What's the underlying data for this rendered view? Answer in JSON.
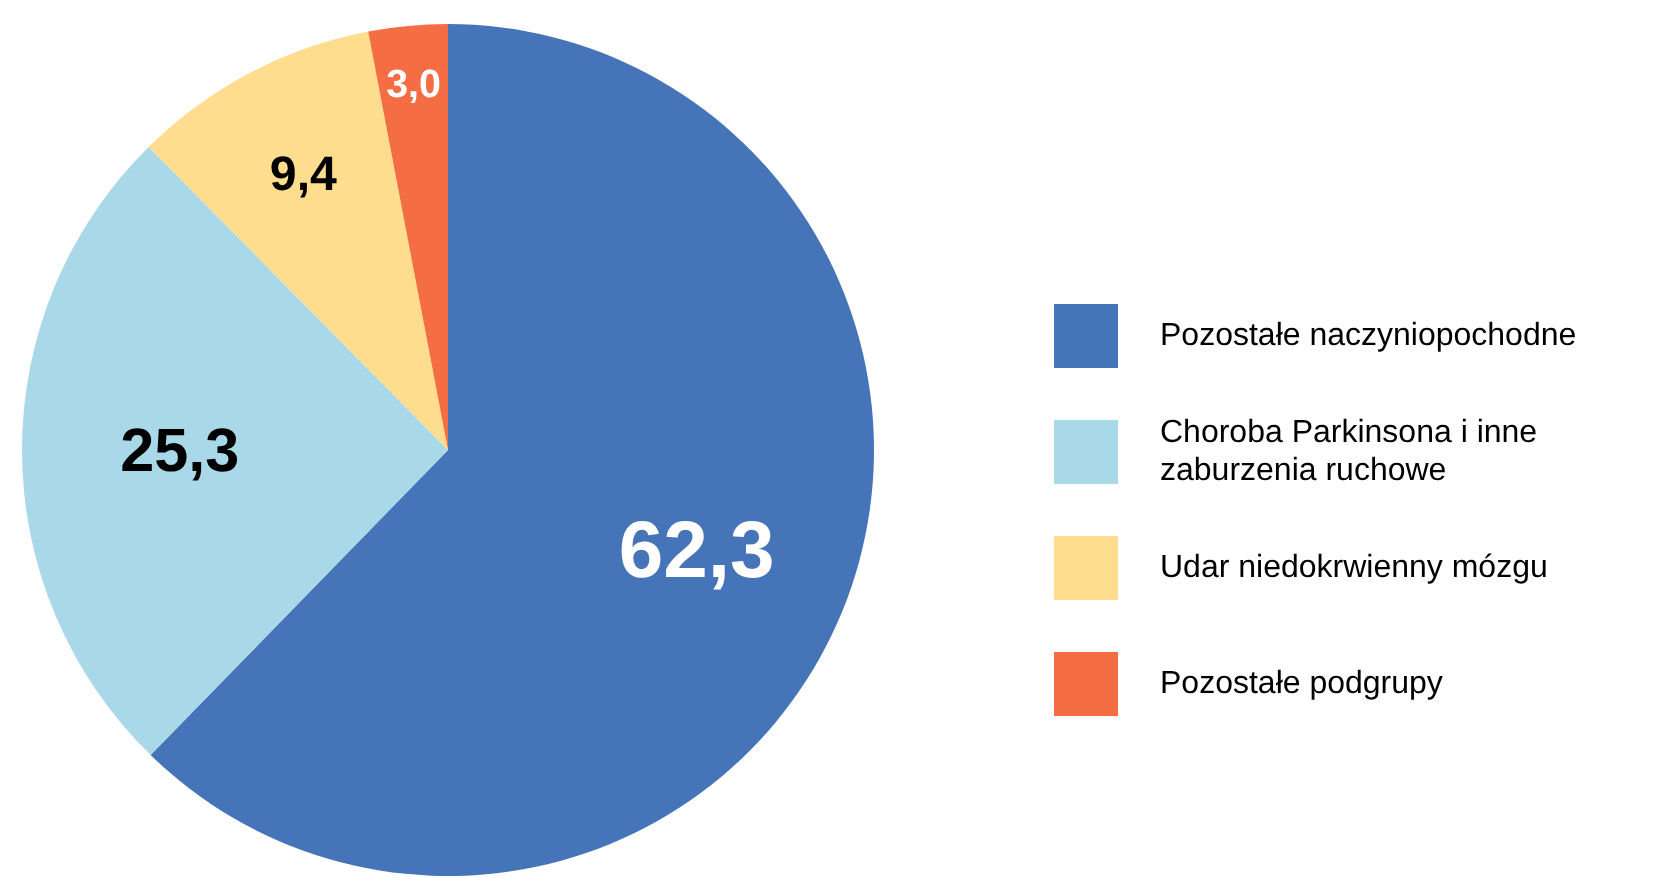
{
  "chart_data": {
    "type": "pie",
    "categories": [
      "Pozostałe naczyniopochodne",
      "Choroba Parkinsona i inne zaburzenia ruchowe",
      "Udar niedokrwienny mózgu",
      "Pozostałe podgrupy"
    ],
    "values": [
      62.3,
      25.3,
      9.4,
      3.0
    ],
    "value_labels": [
      "62,3",
      "25,3",
      "9,4",
      "3,0"
    ],
    "colors": [
      "#4674b8",
      "#a9d8e8",
      "#fedd8e",
      "#f46d43"
    ],
    "legend": "right"
  }
}
